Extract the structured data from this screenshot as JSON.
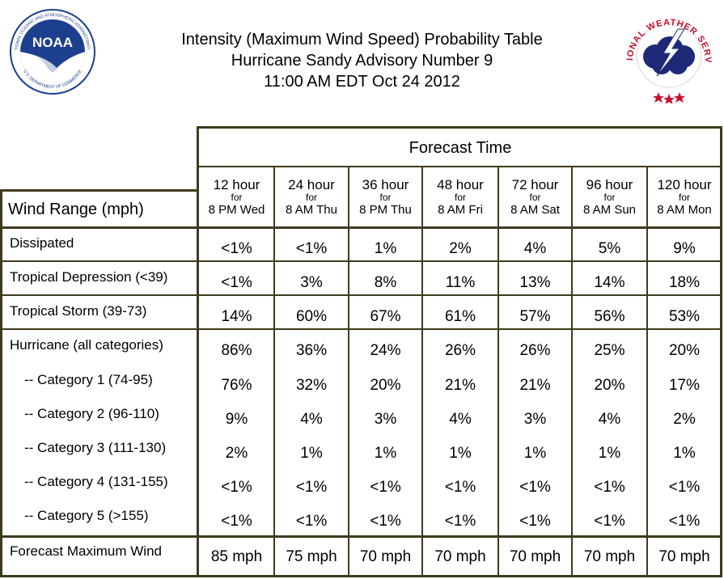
{
  "title": {
    "line1": "Intensity (Maximum Wind Speed) Probability Table",
    "line2": "Hurricane Sandy Advisory Number 9",
    "line3": "11:00 AM EDT Oct 24 2012"
  },
  "logos": {
    "left": {
      "text": "NOAA",
      "ring_text": "NATIONAL OCEANIC AND ATMOSPHERIC ADMINISTRATION",
      "ring_text_bottom": "U.S. DEPARTMENT OF COMMERCE"
    },
    "right": {
      "ring_text": "NATIONAL WEATHER SERVICE"
    }
  },
  "table": {
    "forecast_time_label": "Forecast Time",
    "wind_range_label": "Wind Range (mph)",
    "columns": [
      {
        "hour": "12 hour",
        "for": "for",
        "time": "8 PM Wed"
      },
      {
        "hour": "24 hour",
        "for": "for",
        "time": "8 AM Thu"
      },
      {
        "hour": "36 hour",
        "for": "for",
        "time": "8 PM Thu"
      },
      {
        "hour": "48 hour",
        "for": "for",
        "time": "8 AM Fri"
      },
      {
        "hour": "72 hour",
        "for": "for",
        "time": "8 AM Sat"
      },
      {
        "hour": "96 hour",
        "for": "for",
        "time": "8 AM Sun"
      },
      {
        "hour": "120 hour",
        "for": "for",
        "time": "8 AM Mon"
      }
    ],
    "rows": [
      {
        "label": "Dissipated",
        "values": [
          "<1%",
          "<1%",
          "1%",
          "2%",
          "4%",
          "5%",
          "9%"
        ]
      },
      {
        "label": "Tropical Depression (<39)",
        "values": [
          "<1%",
          "3%",
          "8%",
          "11%",
          "13%",
          "14%",
          "18%"
        ]
      },
      {
        "label": "Tropical Storm (39-73)",
        "values": [
          "14%",
          "60%",
          "67%",
          "61%",
          "57%",
          "56%",
          "53%"
        ]
      },
      {
        "label": "Hurricane (all categories)",
        "values": [
          "86%",
          "36%",
          "24%",
          "26%",
          "26%",
          "25%",
          "20%"
        ]
      },
      {
        "label": "-- Category 1 (74-95)",
        "values": [
          "76%",
          "32%",
          "20%",
          "21%",
          "21%",
          "20%",
          "17%"
        ]
      },
      {
        "label": "-- Category 2 (96-110)",
        "values": [
          "9%",
          "4%",
          "3%",
          "4%",
          "3%",
          "4%",
          "2%"
        ]
      },
      {
        "label": "-- Category 3 (111-130)",
        "values": [
          "2%",
          "1%",
          "1%",
          "1%",
          "1%",
          "1%",
          "1%"
        ]
      },
      {
        "label": "-- Category 4 (131-155)",
        "values": [
          "<1%",
          "<1%",
          "<1%",
          "<1%",
          "<1%",
          "<1%",
          "<1%"
        ]
      },
      {
        "label": "-- Category 5 (>155)",
        "values": [
          "<1%",
          "<1%",
          "<1%",
          "<1%",
          "<1%",
          "<1%",
          "<1%"
        ]
      },
      {
        "label": "Forecast Maximum Wind",
        "values": [
          "85 mph",
          "75 mph",
          "70 mph",
          "70 mph",
          "70 mph",
          "70 mph",
          "70 mph"
        ]
      }
    ]
  },
  "colors": {
    "border": "#3e3a1d",
    "noaa_blue": "#1d3f8f",
    "nws_red": "#c8102e",
    "nws_navy": "#1e2a78"
  }
}
